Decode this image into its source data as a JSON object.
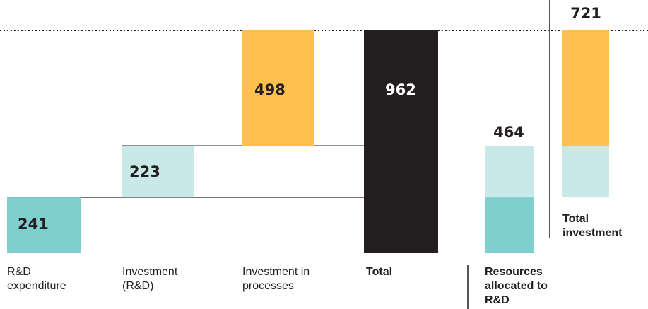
{
  "chart_data": {
    "type": "waterfall",
    "categories": [
      "R&D expenditure",
      "Investment (R&D)",
      "Investment in processes",
      "Total",
      "Resources allocated to R&D",
      "Total investment"
    ],
    "values": [
      241,
      223,
      498,
      962,
      464,
      721
    ],
    "colors": [
      "#7fcfcf",
      "#c9e9e8",
      "#ffc04d",
      "#231f20"
    ],
    "stacks": [
      {
        "values": [
          241,
          223
        ],
        "colors": [
          "#7fcfcf",
          "#c9e9e8"
        ]
      },
      {
        "values": [
          223,
          498
        ],
        "colors": [
          "#c9e9e8",
          "#ffc04d"
        ]
      }
    ]
  }
}
